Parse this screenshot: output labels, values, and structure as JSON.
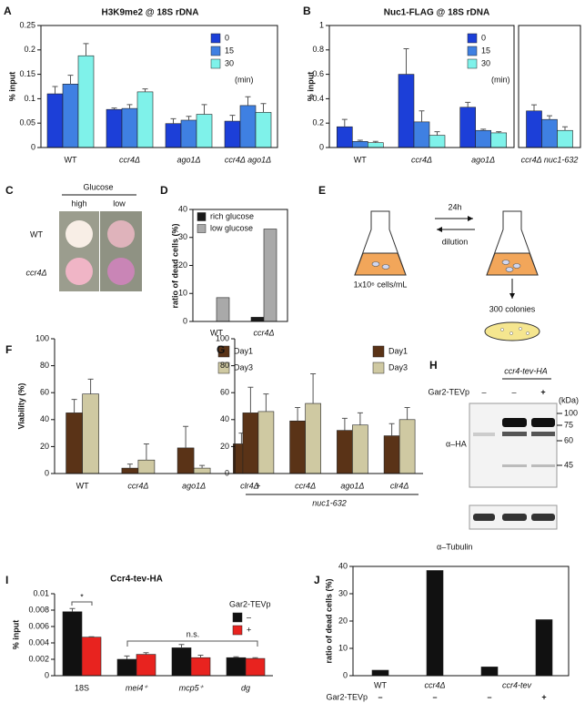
{
  "chart_data": [
    {
      "type": "bar",
      "panel_label": "A",
      "title": "H3K9me2 @ 18S rDNA",
      "y_label": "% input",
      "categories": [
        "WT",
        "ccr4Δ",
        "ago1Δ",
        "ccr4Δ ago1Δ"
      ],
      "series": [
        {
          "name": "0",
          "color": "#1c3fd8",
          "values": [
            0.11,
            0.078,
            0.049,
            0.054
          ],
          "errors": [
            0.015,
            0.003,
            0.01,
            0.012
          ]
        },
        {
          "name": "15",
          "color": "#3f80e2",
          "values": [
            0.13,
            0.08,
            0.056,
            0.086
          ],
          "errors": [
            0.018,
            0.008,
            0.008,
            0.018
          ]
        },
        {
          "name": "30",
          "color": "#7ff2ea",
          "values": [
            0.188,
            0.114,
            0.068,
            0.072
          ],
          "errors": [
            0.025,
            0.006,
            0.02,
            0.018
          ]
        }
      ],
      "legend_note": "(min)",
      "ylim": [
        0,
        0.25
      ],
      "yticks": [
        0,
        0.05,
        0.1,
        0.15,
        0.2,
        0.25
      ]
    },
    {
      "type": "bar",
      "panel_label": "B",
      "title": "Nuc1-FLAG @ 18S rDNA",
      "y_label": "% input",
      "categories": [
        "WT",
        "ccr4Δ",
        "ago1Δ",
        "ccr4Δ nuc1-632"
      ],
      "series": [
        {
          "name": "0",
          "color": "#1c3fd8",
          "values": [
            0.17,
            0.6,
            0.33,
            0.3
          ],
          "errors": [
            0.06,
            0.21,
            0.04,
            0.05
          ]
        },
        {
          "name": "15",
          "color": "#3f80e2",
          "values": [
            0.05,
            0.21,
            0.14,
            0.23
          ],
          "errors": [
            0.01,
            0.09,
            0.01,
            0.03
          ]
        },
        {
          "name": "30",
          "color": "#7ff2ea",
          "values": [
            0.04,
            0.1,
            0.12,
            0.14
          ],
          "errors": [
            0.01,
            0.03,
            0.01,
            0.03
          ]
        }
      ],
      "legend_note": "(min)",
      "ylim": [
        0,
        1
      ],
      "yticks": [
        0,
        0.2,
        0.4,
        0.6,
        0.8,
        1
      ]
    },
    {
      "type": "bar",
      "panel_label": "D",
      "y_label": "ratio of dead cells (%)",
      "categories": [
        "WT",
        "ccr4Δ"
      ],
      "series": [
        {
          "name": "rich glucose",
          "color": "#1a1a1a",
          "values": [
            0,
            1.5
          ]
        },
        {
          "name": "low glucose",
          "color": "#a9a9a9",
          "values": [
            8.5,
            33
          ]
        }
      ],
      "ylim": [
        0,
        40
      ],
      "yticks": [
        0,
        10,
        20,
        30,
        40
      ]
    },
    {
      "type": "bar",
      "panel_label": "F",
      "y_label": "Viability (%)",
      "categories": [
        "WT",
        "ccr4Δ",
        "ago1Δ",
        "clr4Δ"
      ],
      "series": [
        {
          "name": "Day1",
          "color": "#5a3317",
          "values": [
            45,
            4,
            19,
            22
          ],
          "errors": [
            10,
            3,
            16,
            8
          ]
        },
        {
          "name": "Day3",
          "color": "#cfc9a2",
          "values": [
            59,
            10,
            4,
            26
          ],
          "errors": [
            11,
            12,
            2,
            13
          ]
        }
      ],
      "ylim": [
        0,
        100
      ],
      "yticks": [
        0,
        20,
        40,
        60,
        80,
        100
      ]
    },
    {
      "type": "bar",
      "panel_label": "G",
      "x_label": "nuc1-632",
      "categories": [
        "+",
        "ccr4Δ",
        "ago1Δ",
        "clr4Δ"
      ],
      "series": [
        {
          "name": "Day1",
          "color": "#5a3317",
          "values": [
            45,
            39,
            32,
            28
          ],
          "errors": [
            19,
            10,
            9,
            9
          ]
        },
        {
          "name": "Day3",
          "color": "#cfc9a2",
          "values": [
            46,
            52,
            36,
            40
          ],
          "errors": [
            13,
            22,
            9,
            9
          ]
        }
      ],
      "ylim": [
        0,
        100
      ],
      "yticks": [
        0,
        20,
        40,
        60,
        80,
        100
      ]
    },
    {
      "type": "bar",
      "panel_label": "I",
      "title": "Ccr4-tev-HA",
      "y_label": "% input",
      "categories": [
        "18S",
        "mei4⁺",
        "mcp5⁺",
        "dg"
      ],
      "legend_title": "Gar2-TEVp",
      "series": [
        {
          "name": "–",
          "color": "#111111",
          "values": [
            0.0078,
            0.002,
            0.0034,
            0.0022
          ],
          "errors": [
            0.0004,
            0.0004,
            0.0004,
            0.0001
          ]
        },
        {
          "name": "+",
          "color": "#e8231f",
          "values": [
            0.0047,
            0.0026,
            0.0022,
            0.0021
          ],
          "errors": [
            5e-05,
            0.0002,
            0.0003,
            0.0001
          ]
        }
      ],
      "annotations": [
        "*",
        "n.s."
      ],
      "ylim": [
        0,
        0.01
      ],
      "yticks": [
        0,
        0.002,
        0.004,
        0.006,
        0.008,
        0.01
      ]
    },
    {
      "type": "bar",
      "panel_label": "J",
      "y_label": "ratio of dead cells (%)",
      "categories": [
        "WT",
        "ccr4Δ",
        "ccr4-tev",
        null
      ],
      "values": [
        2,
        38.5,
        3.2,
        20.5
      ],
      "color": "#111111",
      "row_label": "Gar2-TEVp",
      "row_values": [
        "–",
        "–",
        "–",
        "+"
      ],
      "ylim": [
        0,
        40
      ],
      "yticks": [
        0,
        10,
        20,
        30,
        40
      ]
    }
  ],
  "panel_c": {
    "label": "C",
    "medium": "Glucose",
    "columns": [
      "high",
      "low"
    ],
    "rows": [
      "WT",
      "ccr4Δ"
    ]
  },
  "panel_e": {
    "label": "E",
    "step": "24h",
    "reverse": "dilution",
    "start": "1x10⁶ cells/mL",
    "result": "300 colonies"
  },
  "panel_h": {
    "label": "H",
    "strain": "ccr4-tev-HA",
    "protease": "Gar2-TEVp",
    "lanes": [
      "–",
      "–",
      "+"
    ],
    "unit": "(kDa)",
    "markers": [
      100,
      75,
      60,
      45
    ],
    "antibodies": [
      "α–HA",
      "α–Tubulin"
    ]
  }
}
